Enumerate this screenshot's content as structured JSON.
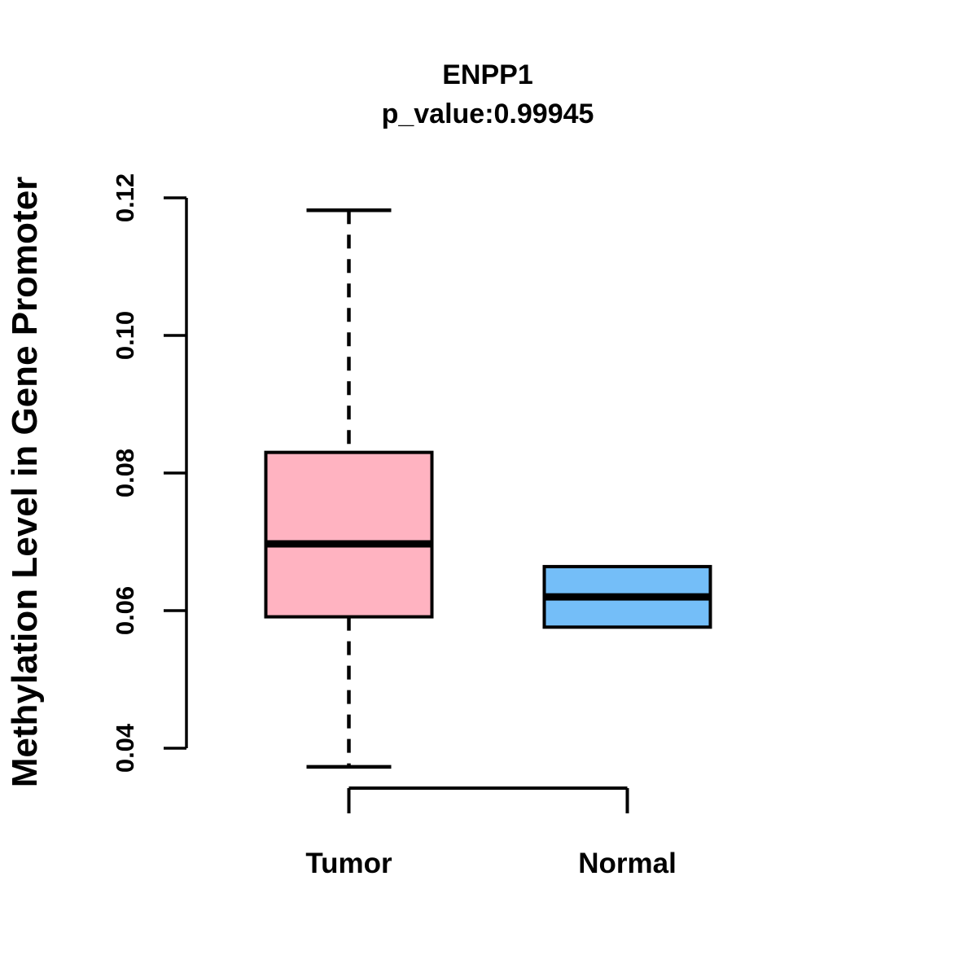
{
  "chart_data": {
    "type": "boxplot",
    "title": "ENPP1",
    "subtitle": "p_value:0.99945",
    "ylabel": "Methylation Level in Gene Promoter",
    "xlabel": "",
    "categories": [
      "Tumor",
      "Normal"
    ],
    "y_axis": {
      "ticks": [
        {
          "value": 0.04,
          "label": "0.04"
        },
        {
          "value": 0.06,
          "label": "0.06"
        },
        {
          "value": 0.08,
          "label": "0.08"
        },
        {
          "value": 0.1,
          "label": "0.10"
        },
        {
          "value": 0.12,
          "label": "0.12"
        }
      ],
      "tick_labels_rotated": true,
      "range_shown": [
        0.037,
        0.119
      ]
    },
    "series": [
      {
        "name": "Tumor",
        "fill": "#FFB3C1",
        "border": "#000000",
        "whisker_low": 0.0373,
        "q1": 0.0591,
        "median": 0.0697,
        "q3": 0.083,
        "whisker_high": 0.1182,
        "whisker_style": "dashed"
      },
      {
        "name": "Normal",
        "fill": "#74BEF8",
        "border": "#000000",
        "whisker_low": 0.0576,
        "q1": 0.0576,
        "median": 0.062,
        "q3": 0.0664,
        "whisker_high": 0.0664,
        "whisker_style": "dashed"
      }
    ],
    "annotations": [
      {
        "type": "bracket",
        "between": [
          "Tumor",
          "Normal"
        ]
      }
    ],
    "legend": null,
    "grid": false
  },
  "colors": {
    "background": "#FFFFFF",
    "foreground": "#000000",
    "tumor_fill": "#FFB3C1",
    "normal_fill": "#74BEF8"
  }
}
